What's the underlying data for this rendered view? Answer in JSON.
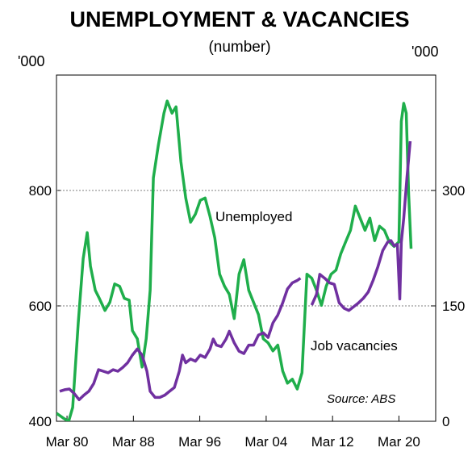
{
  "chart_data": {
    "type": "line",
    "title": "UNEMPLOYMENT & VACANCIES",
    "subtitle": "(number)",
    "y_unit": "'000",
    "y2_unit": "'000",
    "source": "Source: ABS",
    "xlim": [
      1978.9,
      2024.6
    ],
    "xticks": [
      {
        "value": 1980.17,
        "label": "Mar 80"
      },
      {
        "value": 1988.17,
        "label": "Mar 88"
      },
      {
        "value": 1996.17,
        "label": "Mar 96"
      },
      {
        "value": 2004.17,
        "label": "Mar 04"
      },
      {
        "value": 2012.17,
        "label": "Mar 12"
      },
      {
        "value": 2020.17,
        "label": "Mar 20"
      }
    ],
    "ylim": [
      400,
      1000
    ],
    "yticks": [
      400,
      600,
      800
    ],
    "y2lim": [
      0,
      450
    ],
    "y2ticks": [
      0,
      150,
      300
    ],
    "grid": true,
    "series": [
      {
        "name": "Unemployed",
        "color": "#1fae4b",
        "x": [
          1978.9,
          1979.68,
          1980.37,
          1980.85,
          1981.53,
          1982.12,
          1982.6,
          1982.99,
          1983.58,
          1984.06,
          1984.74,
          1985.33,
          1985.91,
          1986.5,
          1987.08,
          1987.66,
          1988.05,
          1988.64,
          1989.22,
          1989.71,
          1990.19,
          1990.58,
          1991.17,
          1991.85,
          1992.24,
          1992.82,
          1993.31,
          1993.89,
          1994.48,
          1995.06,
          1995.64,
          1996.23,
          1996.81,
          1997.4,
          1997.98,
          1998.56,
          1999.15,
          1999.73,
          2000.32,
          2000.9,
          2001.48,
          2002.07,
          2002.65,
          2003.24,
          2003.82,
          2004.4,
          2004.99,
          2005.57,
          2006.16,
          2006.74,
          2007.32,
          2007.91,
          2008.49,
          2009.08,
          2009.66,
          2010.24,
          2010.83,
          2011.41,
          2012.0,
          2012.58,
          2013.16,
          2013.75,
          2014.33,
          2014.92,
          2015.5,
          2016.08,
          2016.67,
          2017.25,
          2017.83,
          2018.42,
          2019.0,
          2019.59,
          2020.17,
          2020.46,
          2020.75,
          2021.05,
          2021.34,
          2021.63
        ],
        "values": [
          414,
          406,
          400,
          424,
          571,
          682,
          727,
          669,
          627,
          613,
          592,
          606,
          638,
          634,
          613,
          610,
          557,
          543,
          494,
          543,
          627,
          822,
          878,
          934,
          955,
          934,
          945,
          850,
          787,
          745,
          759,
          783,
          787,
          755,
          718,
          655,
          634,
          620,
          578,
          655,
          680,
          627,
          606,
          585,
          543,
          536,
          522,
          532,
          487,
          466,
          473,
          456,
          484,
          655,
          648,
          627,
          601,
          634,
          655,
          662,
          690,
          711,
          731,
          773,
          752,
          731,
          752,
          713,
          738,
          731,
          711,
          703,
          711,
          920,
          951,
          934,
          794,
          699
        ]
      },
      {
        "name": "Job vacancies",
        "color": "#7030a0",
        "axis": "y2",
        "x": [
          1979.29,
          1979.88,
          1980.46,
          1981.05,
          1981.63,
          1982.21,
          1982.8,
          1983.38,
          1983.97,
          1984.55,
          1985.13,
          1985.72,
          1986.3,
          1986.89,
          1987.47,
          1988.05,
          1988.64,
          1989.22,
          1989.8,
          1990.19,
          1990.78,
          1991.36,
          1991.95,
          1992.53,
          1993.11,
          1993.7,
          1994.09,
          1994.48,
          1995.06,
          1995.64,
          1996.23,
          1996.81,
          1997.4,
          1997.79,
          1998.17,
          1998.76,
          1999.34,
          1999.73,
          2000.32,
          2000.9,
          2001.48,
          2002.07,
          2002.65,
          2003.24,
          2003.82,
          2004.4,
          2004.99,
          2005.57,
          2006.16,
          2006.74,
          2007.32,
          2007.91,
          2008.3,
          2008.88,
          2009.66,
          2010.24,
          2010.63,
          2011.22,
          2011.8,
          2012.38,
          2012.97,
          2013.55,
          2014.13,
          2014.72,
          2015.3,
          2015.89,
          2016.47,
          2017.05,
          2017.64,
          2018.22,
          2018.81,
          2019.2,
          2019.59,
          2019.98,
          2020.27,
          2020.46,
          2020.75,
          2021.14,
          2021.53
        ],
        "values": [
          39,
          41,
          42,
          36,
          28,
          34,
          39,
          49,
          67,
          65,
          63,
          67,
          65,
          70,
          76,
          86,
          94,
          86,
          65,
          39,
          31,
          31,
          34,
          39,
          44,
          65,
          86,
          76,
          81,
          78,
          86,
          83,
          94,
          107,
          99,
          97,
          107,
          117,
          102,
          91,
          88,
          99,
          99,
          112,
          115,
          109,
          128,
          138,
          154,
          172,
          180,
          183,
          186,
          null,
          151,
          165,
          191,
          186,
          180,
          178,
          154,
          147,
          144,
          149,
          154,
          160,
          168,
          183,
          201,
          222,
          233,
          235,
          228,
          230,
          159,
          233,
          264,
          317,
          364
        ]
      }
    ]
  }
}
